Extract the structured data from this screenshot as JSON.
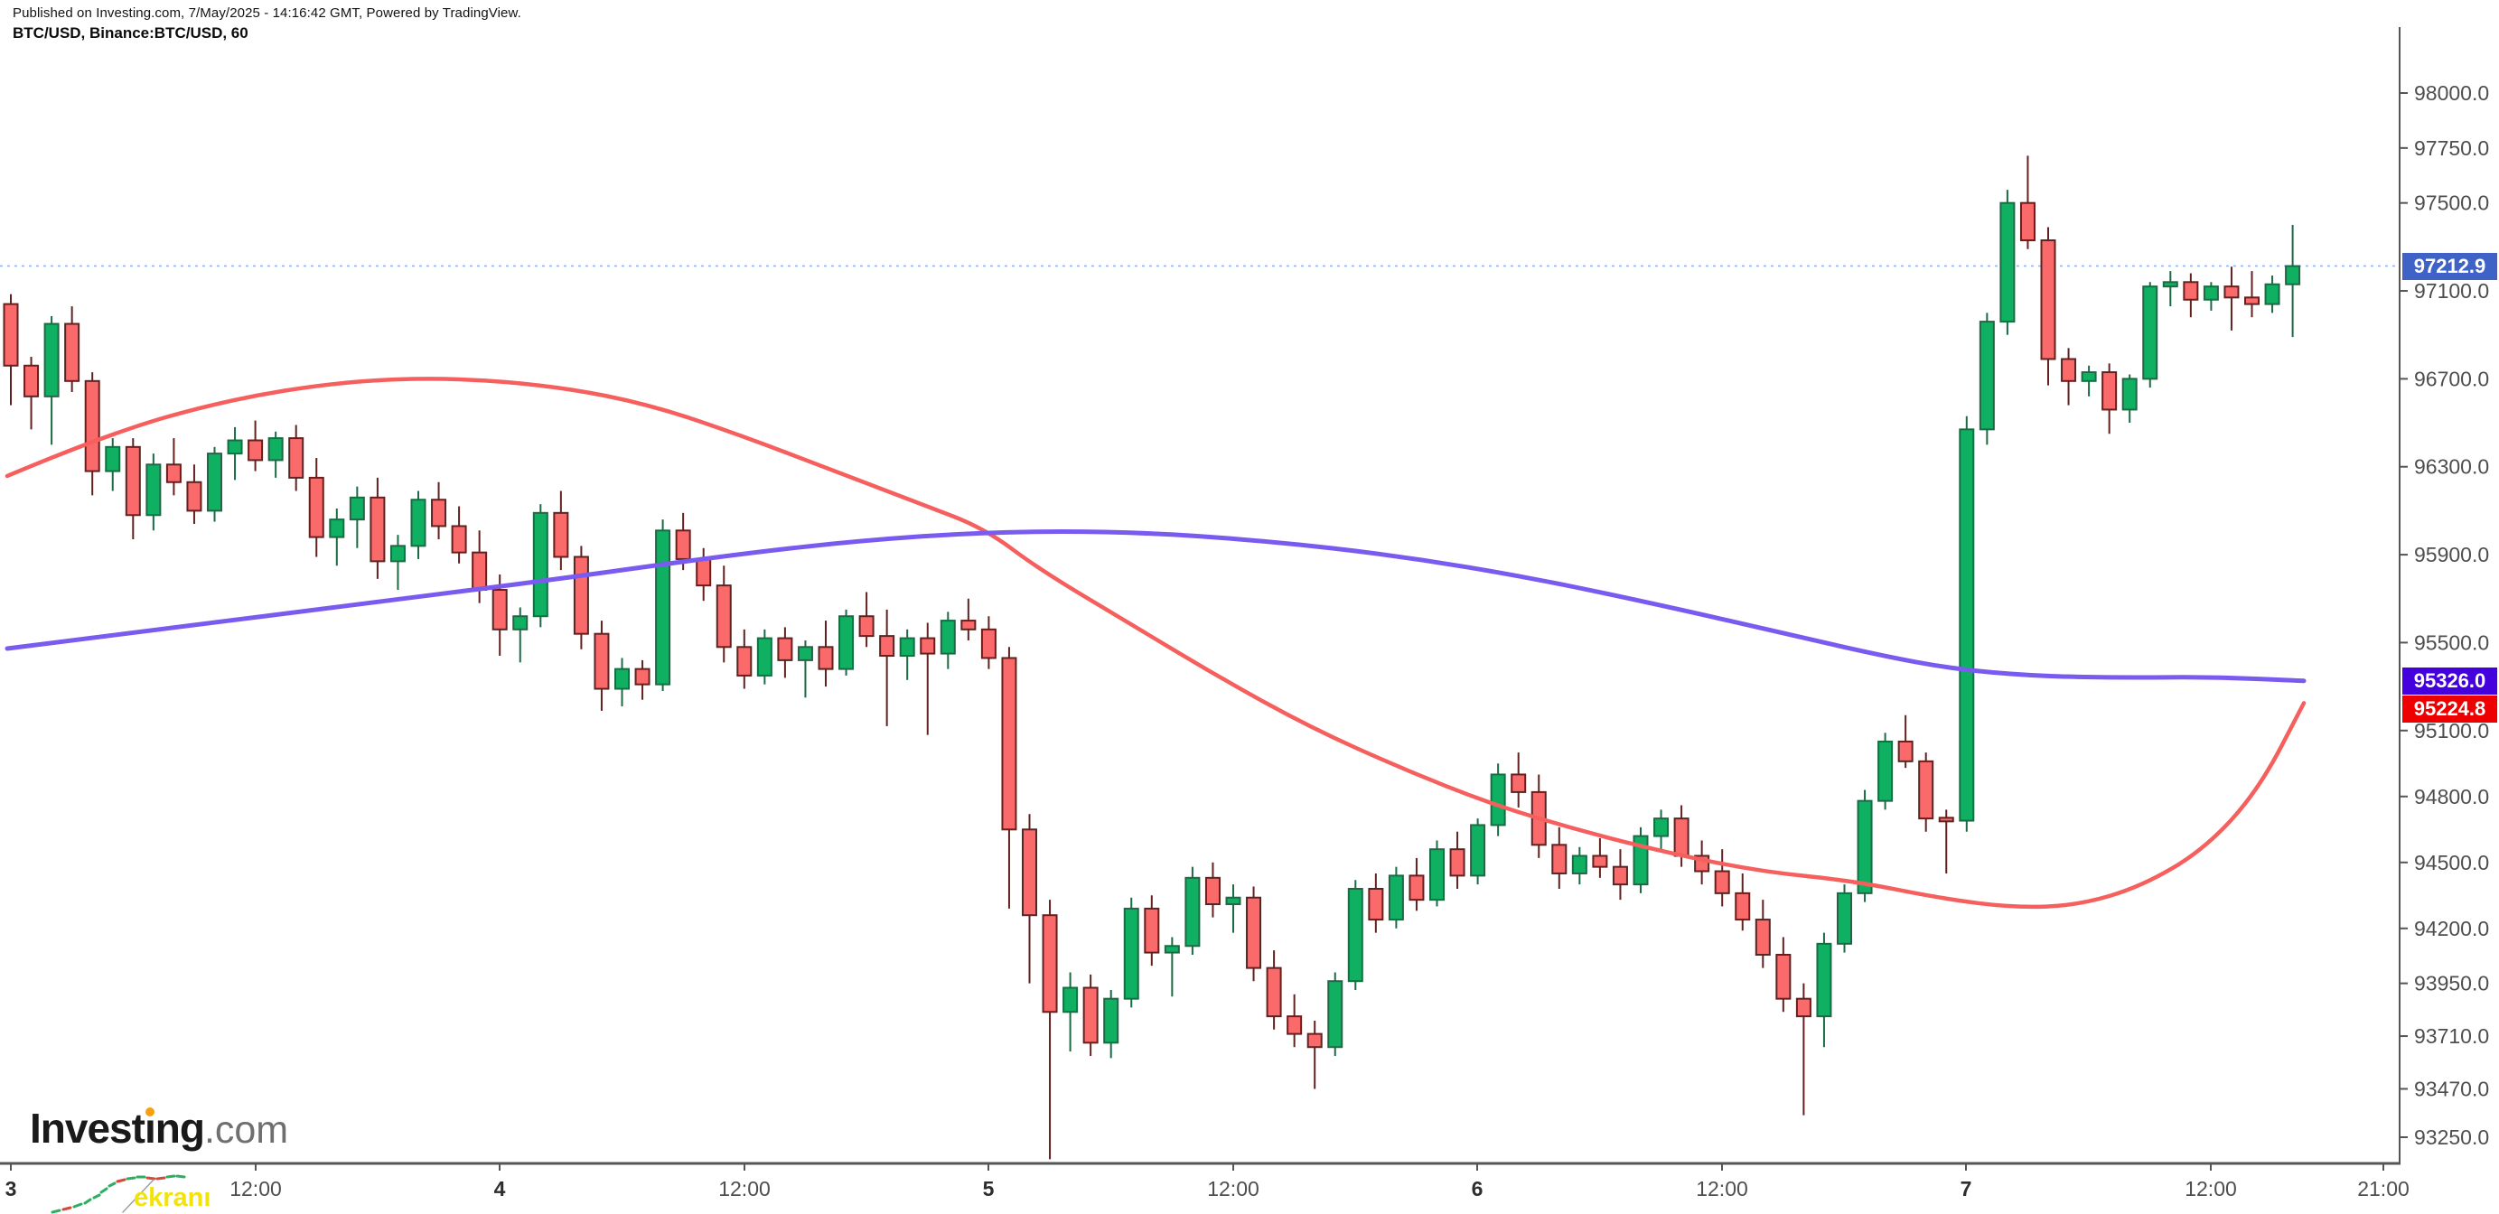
{
  "header": {
    "line1": "Published on Investing.com, 7/May/2025 - 14:16:42 GMT, Powered by TradingView.",
    "line2": "BTC/USD, Binance:BTC/USD, 60"
  },
  "badges": {
    "last_price": "97212.9",
    "ma_purple": "95326.0",
    "ma_red": "95224.8"
  },
  "logo": {
    "part1": "Invest",
    "part2": "ı",
    "part3": "ng",
    "suffix": ".com"
  },
  "watermark": {
    "corner_text": "ekranı"
  },
  "colors": {
    "candle_up_fill": "#0fb061",
    "candle_up_stroke": "#1a6b44",
    "candle_down_fill": "#fa6a6a",
    "candle_down_stroke": "#62201f",
    "ma_purple": "#7a5bf0",
    "ma_red": "#f5605e",
    "last_price_line": "#8fb0e8",
    "badge_last": "#3f62c6",
    "badge_ma_purple": "#4400dd",
    "badge_ma_red": "#ee0000",
    "axis_line": "#555555",
    "axis_text": "#4e4e4e",
    "axis_text_day": "#2d2d2d"
  },
  "price_axis": {
    "labels": [
      {
        "text": "98000.0",
        "value": 98000
      },
      {
        "text": "97750.0",
        "value": 97750
      },
      {
        "text": "97500.0",
        "value": 97500
      },
      {
        "text": "97100.0",
        "value": 97100
      },
      {
        "text": "96700.0",
        "value": 96700
      },
      {
        "text": "96300.0",
        "value": 96300
      },
      {
        "text": "95900.0",
        "value": 95900
      },
      {
        "text": "95500.0",
        "value": 95500
      },
      {
        "text": "95100.0",
        "value": 95100
      },
      {
        "text": "94800.0",
        "value": 94800
      },
      {
        "text": "94500.0",
        "value": 94500
      },
      {
        "text": "94200.0",
        "value": 94200
      },
      {
        "text": "93950.0",
        "value": 93950
      },
      {
        "text": "93710.0",
        "value": 93710
      },
      {
        "text": "93470.0",
        "value": 93470
      },
      {
        "text": "93250.0",
        "value": 93250
      }
    ]
  },
  "time_axis": {
    "ticks": [
      {
        "x": 12,
        "label": "3",
        "day": true
      },
      {
        "x": 283,
        "label": "12:00",
        "day": false
      },
      {
        "x": 553,
        "label": "4",
        "day": true
      },
      {
        "x": 824,
        "label": "12:00",
        "day": false
      },
      {
        "x": 1094,
        "label": "5",
        "day": true
      },
      {
        "x": 1365,
        "label": "12:00",
        "day": false
      },
      {
        "x": 1635,
        "label": "6",
        "day": true
      },
      {
        "x": 1906,
        "label": "12:00",
        "day": false
      },
      {
        "x": 2176,
        "label": "7",
        "day": true
      },
      {
        "x": 2447,
        "label": "12:00",
        "day": false
      },
      {
        "x": 2638,
        "label": "21:00",
        "day": false
      }
    ]
  },
  "chart_data": {
    "type": "candlestick",
    "title": "BTC/USD, Binance:BTC/USD, 60",
    "symbol": "BTC/USD",
    "exchange": "Binance",
    "interval_minutes": 60,
    "published": "7/May/2025 - 14:16:42 GMT",
    "start_time": "2025-05-03 00:00 GMT",
    "last_price": 97212.9,
    "ma_purple_last": 95326.0,
    "ma_red_last": 95224.8,
    "ylim": [
      93150,
      98300
    ],
    "scale": {
      "p1": 98000,
      "y1": 103,
      "p2": 93250,
      "y2": 1259
    },
    "layout": {
      "x0": 12,
      "dx": 22.55,
      "candle_width": 15,
      "axis_x": 2656,
      "axis_y": 1288,
      "plot_top": 30
    },
    "ohlc": [
      [
        97040,
        97085,
        96580,
        96760
      ],
      [
        96760,
        96800,
        96470,
        96620
      ],
      [
        96620,
        96985,
        96400,
        96950
      ],
      [
        96950,
        97030,
        96640,
        96690
      ],
      [
        96690,
        96730,
        96170,
        96280
      ],
      [
        96280,
        96430,
        96190,
        96390
      ],
      [
        96390,
        96430,
        95970,
        96080
      ],
      [
        96080,
        96360,
        96010,
        96310
      ],
      [
        96310,
        96430,
        96170,
        96230
      ],
      [
        96230,
        96310,
        96040,
        96100
      ],
      [
        96100,
        96390,
        96050,
        96360
      ],
      [
        96360,
        96480,
        96240,
        96420
      ],
      [
        96420,
        96510,
        96280,
        96330
      ],
      [
        96330,
        96460,
        96250,
        96430
      ],
      [
        96430,
        96490,
        96190,
        96250
      ],
      [
        96250,
        96340,
        95890,
        95980
      ],
      [
        95980,
        96110,
        95850,
        96060
      ],
      [
        96060,
        96210,
        95930,
        96160
      ],
      [
        96160,
        96250,
        95790,
        95870
      ],
      [
        95870,
        95990,
        95740,
        95940
      ],
      [
        95940,
        96190,
        95880,
        96150
      ],
      [
        96150,
        96230,
        95970,
        96030
      ],
      [
        96030,
        96120,
        95860,
        95910
      ],
      [
        95910,
        96010,
        95680,
        95740
      ],
      [
        95740,
        95810,
        95440,
        95560
      ],
      [
        95560,
        95660,
        95410,
        95620
      ],
      [
        95620,
        96130,
        95570,
        96090
      ],
      [
        96090,
        96190,
        95830,
        95890
      ],
      [
        95890,
        95940,
        95470,
        95540
      ],
      [
        95540,
        95600,
        95190,
        95290
      ],
      [
        95290,
        95430,
        95210,
        95380
      ],
      [
        95380,
        95420,
        95240,
        95310
      ],
      [
        95310,
        96060,
        95280,
        96010
      ],
      [
        96010,
        96090,
        95830,
        95880
      ],
      [
        95880,
        95930,
        95690,
        95760
      ],
      [
        95760,
        95850,
        95410,
        95480
      ],
      [
        95480,
        95560,
        95290,
        95350
      ],
      [
        95350,
        95560,
        95310,
        95520
      ],
      [
        95520,
        95570,
        95340,
        95420
      ],
      [
        95420,
        95510,
        95250,
        95480
      ],
      [
        95480,
        95600,
        95300,
        95380
      ],
      [
        95380,
        95650,
        95350,
        95620
      ],
      [
        95620,
        95730,
        95480,
        95530
      ],
      [
        95530,
        95650,
        95120,
        95440
      ],
      [
        95440,
        95560,
        95330,
        95520
      ],
      [
        95520,
        95590,
        95080,
        95450
      ],
      [
        95450,
        95640,
        95380,
        95600
      ],
      [
        95600,
        95700,
        95510,
        95560
      ],
      [
        95560,
        95620,
        95380,
        95430
      ],
      [
        95430,
        95480,
        94290,
        94650
      ],
      [
        94650,
        94720,
        93950,
        94260
      ],
      [
        94260,
        94330,
        93150,
        93820
      ],
      [
        93820,
        94000,
        93640,
        93930
      ],
      [
        93930,
        93990,
        93620,
        93680
      ],
      [
        93680,
        93920,
        93610,
        93880
      ],
      [
        93880,
        94340,
        93840,
        94290
      ],
      [
        94290,
        94350,
        94030,
        94090
      ],
      [
        94090,
        94160,
        93890,
        94120
      ],
      [
        94120,
        94480,
        94080,
        94430
      ],
      [
        94430,
        94500,
        94250,
        94310
      ],
      [
        94310,
        94400,
        94180,
        94340
      ],
      [
        94340,
        94390,
        93960,
        94020
      ],
      [
        94020,
        94100,
        93740,
        93800
      ],
      [
        93800,
        93900,
        93660,
        93720
      ],
      [
        93720,
        93780,
        93470,
        93660
      ],
      [
        93660,
        94000,
        93620,
        93960
      ],
      [
        93960,
        94420,
        93920,
        94380
      ],
      [
        94380,
        94450,
        94180,
        94240
      ],
      [
        94240,
        94480,
        94200,
        94440
      ],
      [
        94440,
        94520,
        94280,
        94330
      ],
      [
        94330,
        94600,
        94300,
        94560
      ],
      [
        94560,
        94640,
        94380,
        94440
      ],
      [
        94440,
        94700,
        94400,
        94670
      ],
      [
        94670,
        94950,
        94620,
        94900
      ],
      [
        94900,
        95000,
        94750,
        94820
      ],
      [
        94820,
        94900,
        94520,
        94580
      ],
      [
        94580,
        94660,
        94380,
        94450
      ],
      [
        94450,
        94570,
        94400,
        94530
      ],
      [
        94530,
        94610,
        94430,
        94480
      ],
      [
        94480,
        94560,
        94330,
        94400
      ],
      [
        94400,
        94660,
        94360,
        94620
      ],
      [
        94620,
        94740,
        94550,
        94700
      ],
      [
        94700,
        94760,
        94480,
        94530
      ],
      [
        94530,
        94600,
        94400,
        94460
      ],
      [
        94460,
        94560,
        94300,
        94360
      ],
      [
        94360,
        94450,
        94190,
        94240
      ],
      [
        94240,
        94330,
        94020,
        94080
      ],
      [
        94080,
        94160,
        93820,
        93880
      ],
      [
        93880,
        93950,
        93350,
        93800
      ],
      [
        93800,
        94180,
        93660,
        94130
      ],
      [
        94130,
        94400,
        94090,
        94360
      ],
      [
        94360,
        94830,
        94320,
        94780
      ],
      [
        94780,
        95090,
        94740,
        95050
      ],
      [
        95050,
        95170,
        94930,
        94960
      ],
      [
        94960,
        95000,
        94640,
        94700
      ],
      [
        94700,
        94740,
        94450,
        94690
      ],
      [
        94690,
        96530,
        94640,
        96470
      ],
      [
        96470,
        97000,
        96400,
        96960
      ],
      [
        96960,
        97560,
        96900,
        97500
      ],
      [
        97500,
        97715,
        97290,
        97330
      ],
      [
        97330,
        97390,
        96670,
        96790
      ],
      [
        96790,
        96840,
        96580,
        96690
      ],
      [
        96690,
        96760,
        96620,
        96730
      ],
      [
        96730,
        96770,
        96450,
        96560
      ],
      [
        96560,
        96720,
        96500,
        96700
      ],
      [
        96700,
        97140,
        96660,
        97120
      ],
      [
        97120,
        97190,
        97030,
        97140
      ],
      [
        97140,
        97180,
        96980,
        97060
      ],
      [
        97060,
        97140,
        97010,
        97120
      ],
      [
        97120,
        97210,
        96920,
        97070
      ],
      [
        97070,
        97190,
        96980,
        97040
      ],
      [
        97040,
        97170,
        97000,
        97130
      ],
      [
        97130,
        97400,
        96890,
        97212.9
      ]
    ],
    "ma_red_points": [
      [
        8,
        96258
      ],
      [
        120,
        96451
      ],
      [
        250,
        96603
      ],
      [
        380,
        96689
      ],
      [
        500,
        96706
      ],
      [
        620,
        96664
      ],
      [
        720,
        96582
      ],
      [
        820,
        96443
      ],
      [
        920,
        96286
      ],
      [
        1020,
        96130
      ],
      [
        1090,
        96019
      ],
      [
        1150,
        95834
      ],
      [
        1250,
        95588
      ],
      [
        1350,
        95341
      ],
      [
        1450,
        95115
      ],
      [
        1550,
        94930
      ],
      [
        1650,
        94766
      ],
      [
        1750,
        94643
      ],
      [
        1850,
        94540
      ],
      [
        1950,
        94458
      ],
      [
        2050,
        94417
      ],
      [
        2150,
        94335
      ],
      [
        2230,
        94294
      ],
      [
        2300,
        94305
      ],
      [
        2370,
        94390
      ],
      [
        2440,
        94560
      ],
      [
        2500,
        94830
      ],
      [
        2550,
        95224.8
      ]
    ],
    "ma_purple_points": [
      [
        8,
        95473
      ],
      [
        200,
        95571
      ],
      [
        400,
        95677
      ],
      [
        600,
        95779
      ],
      [
        800,
        95894
      ],
      [
        950,
        95964
      ],
      [
        1100,
        96005
      ],
      [
        1250,
        96005
      ],
      [
        1400,
        95964
      ],
      [
        1550,
        95894
      ],
      [
        1700,
        95791
      ],
      [
        1850,
        95660
      ],
      [
        1980,
        95537
      ],
      [
        2080,
        95443
      ],
      [
        2160,
        95381
      ],
      [
        2250,
        95348
      ],
      [
        2350,
        95340
      ],
      [
        2450,
        95344
      ],
      [
        2550,
        95326
      ]
    ]
  }
}
